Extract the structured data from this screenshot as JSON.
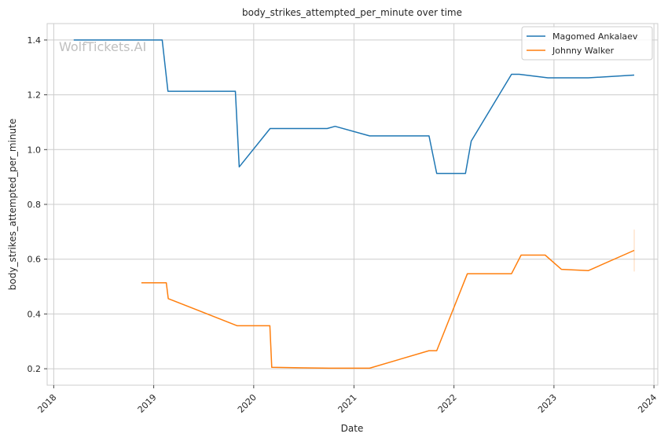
{
  "chart_data": {
    "type": "line",
    "title": "body_strikes_attempted_per_minute over time",
    "xlabel": "Date",
    "ylabel": "body_strikes_attempted_per_minute",
    "watermark": "WolfTickets.AI",
    "x_type": "date",
    "xlim": [
      "2017-12-08",
      "2024-01-15"
    ],
    "ylim": [
      0.14,
      1.46
    ],
    "x_ticks": [
      {
        "date": "2018-01-01",
        "label": "2018"
      },
      {
        "date": "2019-01-01",
        "label": "2019"
      },
      {
        "date": "2020-01-01",
        "label": "2020"
      },
      {
        "date": "2021-01-01",
        "label": "2021"
      },
      {
        "date": "2022-01-01",
        "label": "2022"
      },
      {
        "date": "2023-01-01",
        "label": "2023"
      },
      {
        "date": "2024-01-01",
        "label": "2024"
      }
    ],
    "y_ticks": [
      {
        "value": 0.2,
        "label": "0.2"
      },
      {
        "value": 0.4,
        "label": "0.4"
      },
      {
        "value": 0.6,
        "label": "0.6"
      },
      {
        "value": 0.8,
        "label": "0.8"
      },
      {
        "value": 1.0,
        "label": "1.0"
      },
      {
        "value": 1.2,
        "label": "1.2"
      },
      {
        "value": 1.4,
        "label": "1.4"
      }
    ],
    "grid": true,
    "legend": "top-right",
    "series": [
      {
        "name": "Magomed Ankalaev",
        "color": "#1f77b4",
        "points": [
          {
            "x": "2018-03-15",
            "y": 1.4
          },
          {
            "x": "2019-02-01",
            "y": 1.4
          },
          {
            "x": "2019-02-22",
            "y": 1.213
          },
          {
            "x": "2019-10-26",
            "y": 1.213
          },
          {
            "x": "2019-11-09",
            "y": 0.937
          },
          {
            "x": "2020-03-01",
            "y": 1.077
          },
          {
            "x": "2020-09-25",
            "y": 1.077
          },
          {
            "x": "2020-10-24",
            "y": 1.085
          },
          {
            "x": "2021-02-27",
            "y": 1.05
          },
          {
            "x": "2021-10-02",
            "y": 1.05
          },
          {
            "x": "2021-10-30",
            "y": 0.913
          },
          {
            "x": "2022-02-12",
            "y": 0.913
          },
          {
            "x": "2022-03-05",
            "y": 1.031
          },
          {
            "x": "2022-07-30",
            "y": 1.275
          },
          {
            "x": "2022-08-27",
            "y": 1.275
          },
          {
            "x": "2022-12-10",
            "y": 1.262
          },
          {
            "x": "2023-05-06",
            "y": 1.262
          },
          {
            "x": "2023-10-21",
            "y": 1.272
          }
        ]
      },
      {
        "name": "Johnny Walker",
        "color": "#ff7f0e",
        "points": [
          {
            "x": "2018-11-17",
            "y": 0.514
          },
          {
            "x": "2019-02-16",
            "y": 0.514
          },
          {
            "x": "2019-02-23",
            "y": 0.456
          },
          {
            "x": "2019-11-02",
            "y": 0.357
          },
          {
            "x": "2020-02-29",
            "y": 0.357
          },
          {
            "x": "2020-03-07",
            "y": 0.205
          },
          {
            "x": "2020-10-03",
            "y": 0.202
          },
          {
            "x": "2021-02-27",
            "y": 0.202
          },
          {
            "x": "2021-10-02",
            "y": 0.266
          },
          {
            "x": "2021-10-30",
            "y": 0.266
          },
          {
            "x": "2022-02-19",
            "y": 0.547
          },
          {
            "x": "2022-07-30",
            "y": 0.547
          },
          {
            "x": "2022-09-03",
            "y": 0.615
          },
          {
            "x": "2022-11-30",
            "y": 0.615
          },
          {
            "x": "2023-01-28",
            "y": 0.563
          },
          {
            "x": "2023-05-06",
            "y": 0.558
          },
          {
            "x": "2023-10-21",
            "y": 0.632
          }
        ],
        "error_bar": {
          "x": "2023-10-21",
          "low": 0.555,
          "high": 0.708
        }
      }
    ]
  }
}
